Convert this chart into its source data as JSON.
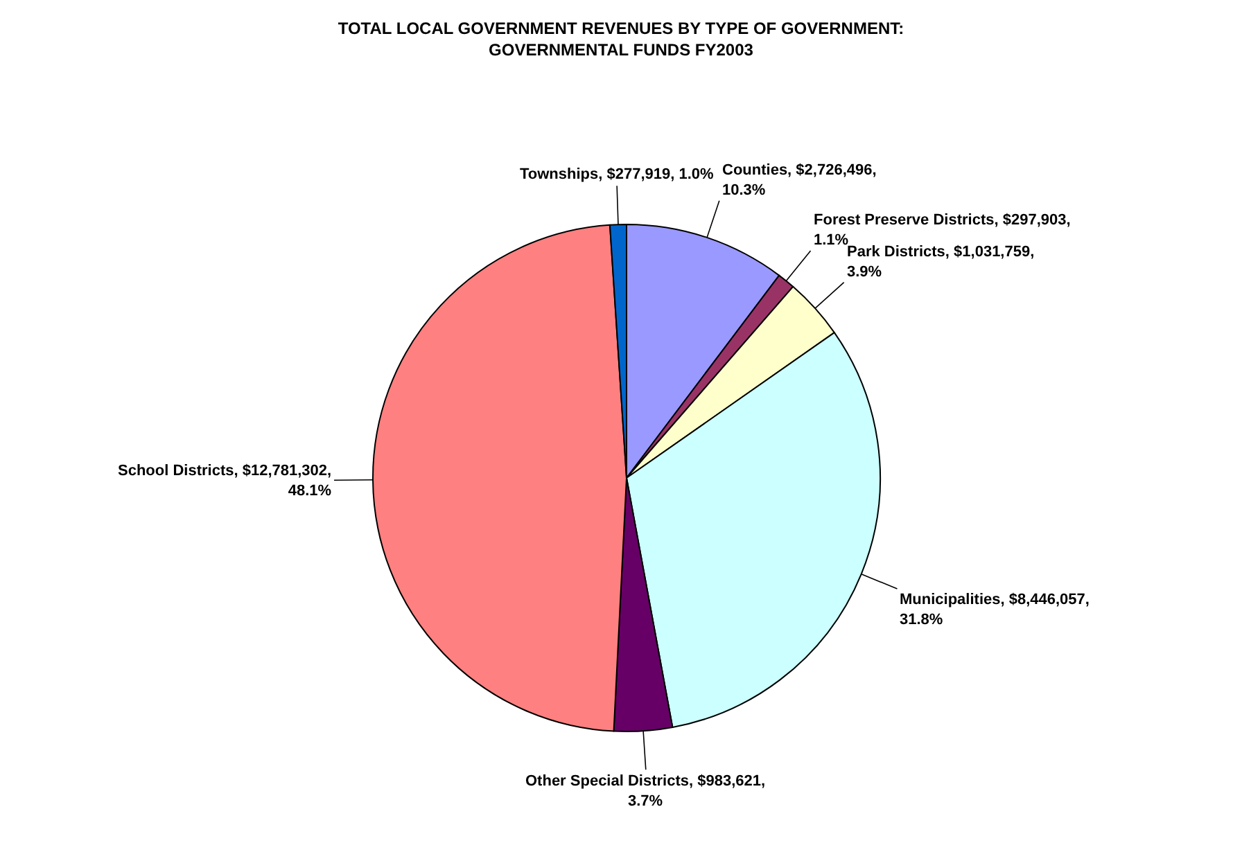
{
  "chart_data": {
    "type": "pie",
    "title": "TOTAL LOCAL GOVERNMENT REVENUES BY TYPE OF GOVERNMENT:\nGOVERNMENTAL FUNDS FY2003",
    "categories": [
      "Counties",
      "Forest Preserve Districts",
      "Park Districts",
      "Municipalities",
      "Other Special Districts",
      "School Districts",
      "Townships"
    ],
    "values": [
      2726496,
      297903,
      1031759,
      8446057,
      983621,
      12781302,
      277919
    ],
    "value_labels": [
      "$2,726,496, 10.3%",
      "$297,903, 1.1%",
      "$1,031,759, 3.9%",
      "$8,446,057, 31.8%",
      "$983,621, 3.7%",
      "$12,781,302, 48.1%",
      "$277,919, 1.0%"
    ],
    "colors": [
      "#9999ff",
      "#993366",
      "#ffffcc",
      "#ccffff",
      "#660066",
      "#ff8080",
      "#0066cc"
    ],
    "legend": false
  }
}
